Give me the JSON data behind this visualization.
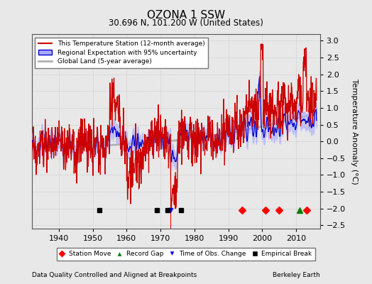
{
  "title": "OZONA 1 SSW",
  "subtitle": "30.696 N, 101.200 W (United States)",
  "ylabel": "Temperature Anomaly (°C)",
  "footer_left": "Data Quality Controlled and Aligned at Breakpoints",
  "footer_right": "Berkeley Earth",
  "xlim": [
    1932,
    2017
  ],
  "ylim": [
    -2.6,
    3.2
  ],
  "yticks": [
    -2.5,
    -2,
    -1.5,
    -1,
    -0.5,
    0,
    0.5,
    1,
    1.5,
    2,
    2.5,
    3
  ],
  "xticks": [
    1940,
    1950,
    1960,
    1970,
    1980,
    1990,
    2000,
    2010
  ],
  "station_moves": [
    1994,
    2001,
    2005,
    2013
  ],
  "record_gaps": [
    2011
  ],
  "obs_changes": [
    1973
  ],
  "empirical_breaks": [
    1952,
    1969,
    1972,
    1976
  ],
  "marker_y": -2.05,
  "bg_color": "#e8e8e8",
  "plot_bg": "#e8e8e8",
  "line_color_station": "#cc0000",
  "line_color_regional": "#0000cc",
  "shade_color_regional": "#aaaaff",
  "line_color_global": "#b0b0b0",
  "seed": 12
}
